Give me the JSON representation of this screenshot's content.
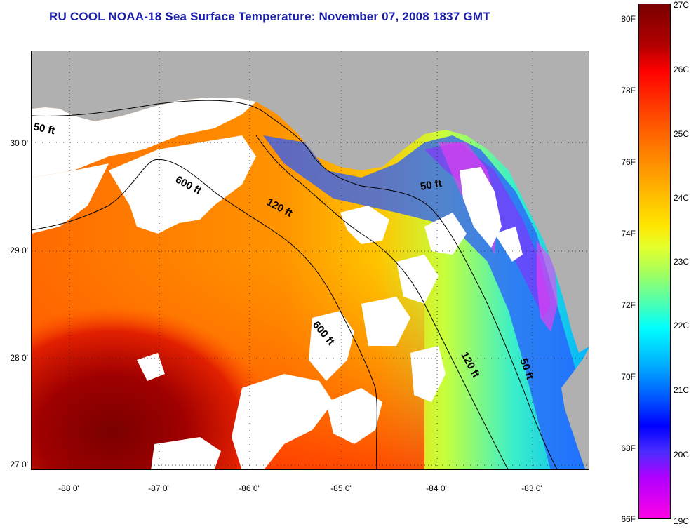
{
  "title": "RU COOL  NOAA-18  Sea Surface Temperature:  November 07, 2008 1837 GMT",
  "map": {
    "lat_labels": [
      "30 0'",
      "29 0'",
      "28 0'",
      "27 0'"
    ],
    "lon_labels": [
      "-88 0'",
      "-87 0'",
      "-86 0'",
      "-85 0'",
      "-84 0'",
      "-83 0'"
    ],
    "contours": [
      "50 ft",
      "600 ft",
      "120 ft",
      "50 ft",
      "600 ft",
      "120 ft",
      "50 ft"
    ],
    "land_color": "#b0b0b0",
    "cloud_color": "#ffffff"
  },
  "colorbar": {
    "fahrenheit_labels": [
      "80F",
      "78F",
      "76F",
      "74F",
      "72F",
      "70F",
      "68F",
      "66F"
    ],
    "celsius_labels": [
      "27C",
      "26C",
      "25C",
      "24C",
      "23C",
      "22C",
      "21C",
      "20C",
      "19C"
    ],
    "max_c": 27,
    "min_c": 19
  }
}
